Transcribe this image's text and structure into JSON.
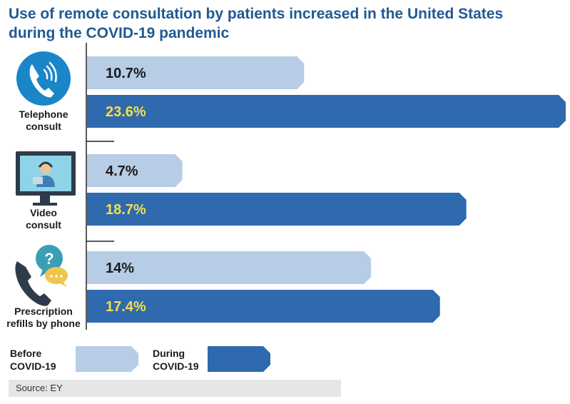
{
  "title": "Use of remote consultation by patients increased in the United States during the COVID-19 pandemic",
  "chart_data": {
    "type": "bar",
    "orientation": "horizontal",
    "categories": [
      "Telephone consult",
      "Video consult",
      "Prescription refills by phone"
    ],
    "category_labels": [
      [
        "Telephone",
        "consult"
      ],
      [
        "Video",
        "consult"
      ],
      [
        "Prescription",
        "refills by phone"
      ]
    ],
    "series": [
      {
        "name": "Before COVID-19",
        "values": [
          10.7,
          4.7,
          14
        ],
        "labels": [
          "10.7%",
          "4.7%",
          "14%"
        ],
        "color": "#b7cde6",
        "label_color": "#1a1a1a"
      },
      {
        "name": "During COVID-19",
        "values": [
          23.6,
          18.7,
          17.4
        ],
        "labels": [
          "23.6%",
          "18.7%",
          "17.4%"
        ],
        "color": "#2f69ae",
        "label_color": "#f4e04d"
      }
    ],
    "xlim": [
      0,
      23.6
    ],
    "legend_position": "bottom-left",
    "grid": false
  },
  "legend": {
    "before": [
      "Before",
      "COVID-19"
    ],
    "during": [
      "During",
      "COVID-19"
    ]
  },
  "icons": [
    "telephone-icon",
    "video-monitor-icon",
    "prescription-phone-icon"
  ],
  "source": "Source: EY"
}
